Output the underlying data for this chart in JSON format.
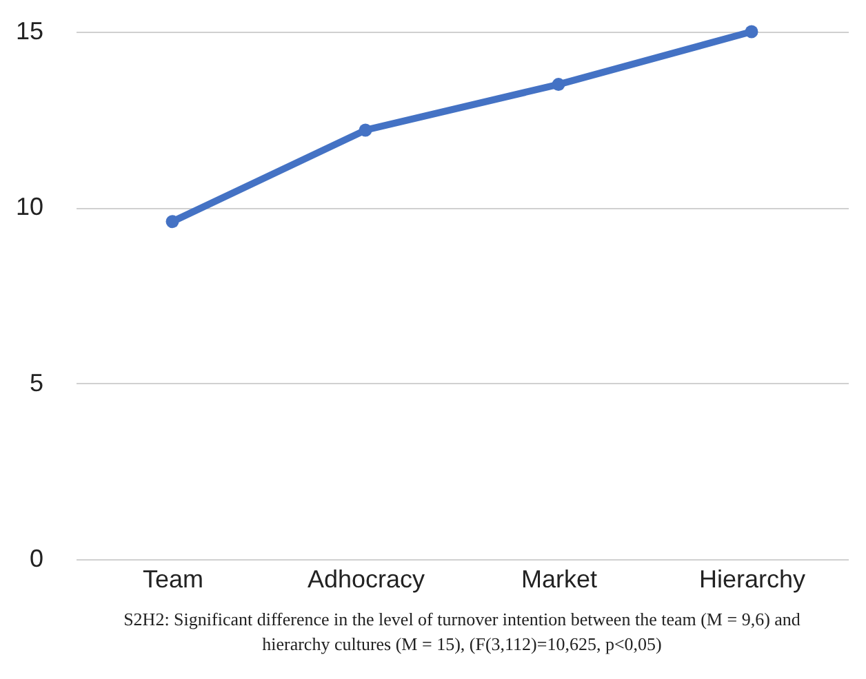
{
  "chart_data": {
    "type": "line",
    "categories": [
      "Team",
      "Adhocracy",
      "Market",
      "Hierarchy"
    ],
    "series": [
      {
        "color": "#4472c4",
        "values": [
          9.6,
          12.2,
          13.5,
          15
        ]
      }
    ],
    "ylim": [
      0,
      15
    ],
    "yticks": [
      0,
      5,
      10,
      15
    ],
    "grid": "y",
    "marker": "circle",
    "line_style": "solid",
    "legend": false,
    "annotations": [
      "S2H2: Significant difference in the level of turnover intention between the team (M = 9,6) and hierarchy cultures (M = 15), (F(3,112)=10,625, p<0,05)"
    ]
  }
}
